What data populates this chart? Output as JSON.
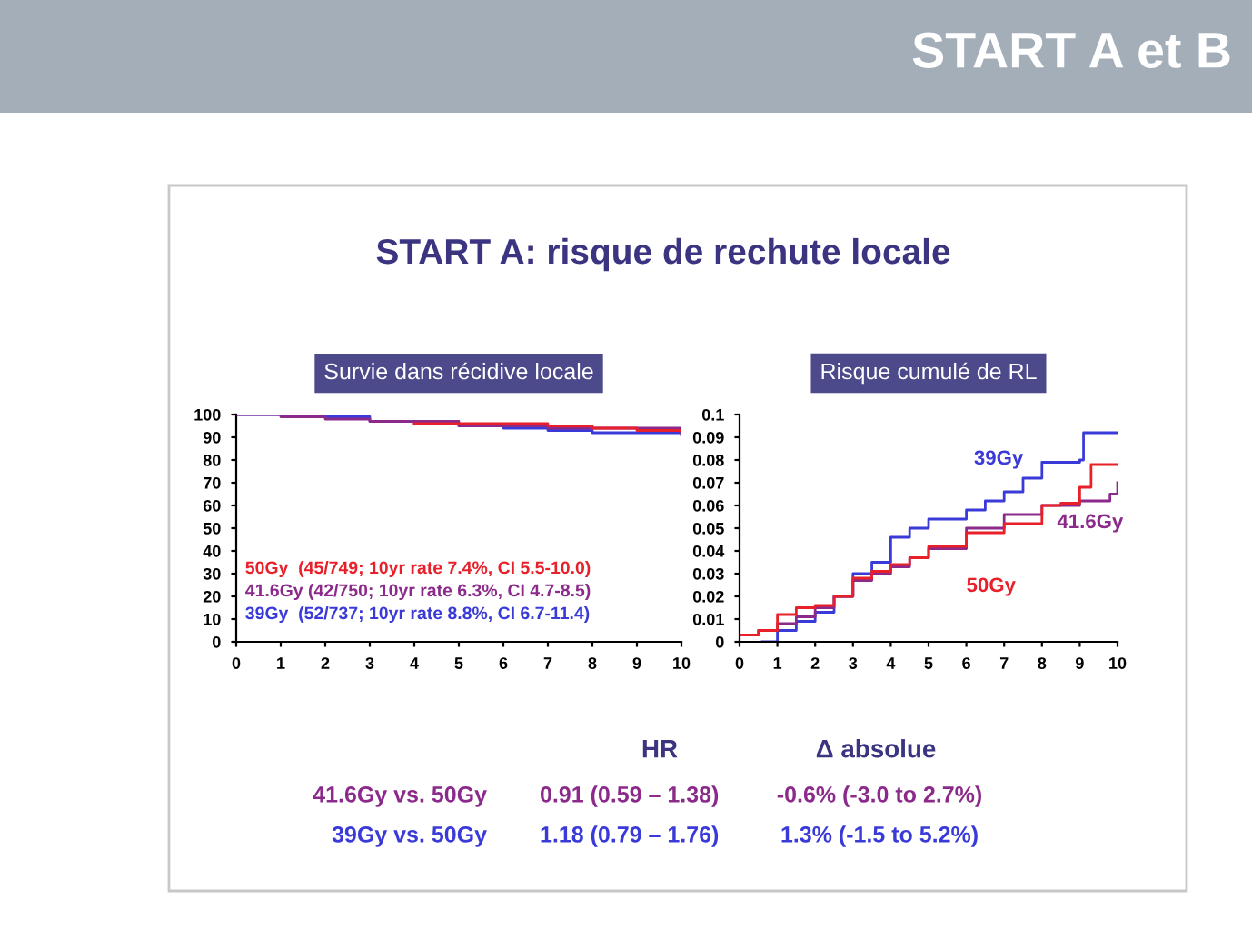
{
  "chart_data": [
    {
      "type": "other",
      "title": "START A et B",
      "subtitle": "START A: risque de rechute locale"
    },
    {
      "type": "step",
      "title": "Survie dans récidive locale",
      "x": [
        0,
        1,
        2,
        3,
        4,
        5,
        6,
        7,
        8,
        9,
        10
      ],
      "xlim": [
        0,
        10
      ],
      "xticks": [
        0,
        1,
        2,
        3,
        4,
        5,
        6,
        7,
        8,
        9,
        10
      ],
      "ylim": [
        0,
        100
      ],
      "yticks": [
        0,
        10,
        20,
        30,
        40,
        50,
        60,
        70,
        80,
        90,
        100
      ],
      "series": [
        {
          "name": "50Gy  (45/749; 10yr rate 7.4%, CI 5.5-10.0)",
          "color": "#e8202a",
          "values": [
            null,
            null,
            null,
            null,
            96,
            96,
            96,
            95,
            94,
            93,
            92
          ]
        },
        {
          "name": "41.6Gy (42/750; 10yr rate 6.3%, CI 4.7-8.5)",
          "color": "#8b2a8a",
          "values": [
            100,
            99,
            98,
            97,
            97,
            95,
            95,
            94,
            94,
            94,
            93
          ]
        },
        {
          "name": "39Gy  (52/737; 10yr rate 8.8%, CI 6.7-11.4)",
          "color": "#3a3ad8",
          "values": [
            100,
            100,
            99,
            97,
            96,
            95,
            94,
            93,
            92,
            92,
            91
          ]
        }
      ]
    },
    {
      "type": "step",
      "title": "Risque cumulé de RL",
      "xlim": [
        0,
        10
      ],
      "xticks": [
        0,
        1,
        2,
        3,
        4,
        5,
        6,
        7,
        8,
        9,
        10
      ],
      "ylim": [
        0,
        0.1
      ],
      "yticks": [
        0,
        0.01,
        0.02,
        0.03,
        0.04,
        0.05,
        0.06,
        0.07,
        0.08,
        0.09,
        0.1
      ],
      "series": [
        {
          "name": "39Gy",
          "color": "#3a3ad8",
          "x": [
            0.6,
            1,
            1.5,
            2,
            2.5,
            3,
            3.5,
            4,
            4.5,
            5,
            6,
            6.5,
            7,
            7.5,
            8,
            8.5,
            9,
            9.1,
            10
          ],
          "values": [
            0,
            0.005,
            0.009,
            0.013,
            0.02,
            0.03,
            0.035,
            0.046,
            0.05,
            0.054,
            0.058,
            0.062,
            0.066,
            0.072,
            0.079,
            0.079,
            0.08,
            0.092,
            0.092
          ]
        },
        {
          "name": "41.6Gy",
          "color": "#8b2a8a",
          "x": [
            0,
            0.5,
            1,
            1.5,
            2,
            2.5,
            3,
            3.5,
            4,
            4.5,
            5,
            6,
            7,
            8,
            9,
            9.8,
            10
          ],
          "values": [
            0.003,
            0.005,
            0.008,
            0.011,
            0.015,
            0.02,
            0.027,
            0.03,
            0.033,
            0.037,
            0.041,
            0.05,
            0.056,
            0.06,
            0.062,
            0.065,
            0.07
          ]
        },
        {
          "name": "50Gy",
          "color": "#e8202a",
          "x": [
            0,
            0.5,
            1,
            1.5,
            2,
            2.5,
            3,
            3.5,
            4,
            4.5,
            5,
            6,
            7,
            8,
            8.5,
            9,
            9.3,
            10
          ],
          "values": [
            0.003,
            0.005,
            0.012,
            0.015,
            0.016,
            0.02,
            0.028,
            0.031,
            0.034,
            0.037,
            0.042,
            0.048,
            0.052,
            0.06,
            0.061,
            0.068,
            0.078,
            0.078
          ]
        }
      ]
    },
    {
      "type": "other",
      "annotations": [
        "HR",
        "Δ absolue",
        "41.6Gy vs. 50Gy",
        "0.91 (0.59 – 1.38)",
        "-0.6% (-3.0 to 2.7%)",
        "39Gy vs. 50Gy",
        "1.18 (0.79 – 1.76)",
        "1.3% (-1.5 to 5.2%)"
      ]
    }
  ]
}
